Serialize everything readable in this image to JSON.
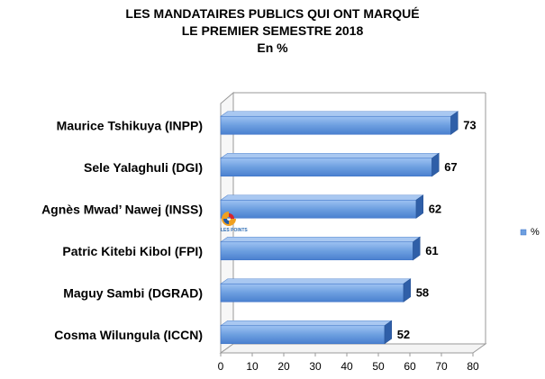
{
  "chart_data": {
    "type": "bar",
    "orientation": "horizontal",
    "three_d": true,
    "title_lines": [
      "LES MANDATAIRES PUBLICS QUI ONT MARQUÉ",
      "LE PREMIER SEMESTRE 2018",
      "En %"
    ],
    "categories": [
      "Maurice Tshikuya   (INPP)",
      "Sele Yalaghuli (DGI)",
      "Agnès Mwad’ Nawej (INSS)",
      "Patric Kitebi Kibol (FPI)",
      "Maguy Sambi (DGRAD)",
      "Cosma Wilungula  (ICCN)"
    ],
    "series": [
      {
        "name": "%",
        "values": [
          73,
          67,
          62,
          61,
          58,
          52
        ]
      }
    ],
    "xlim": [
      0,
      80
    ],
    "xticks": [
      "0",
      "10",
      "20",
      "30",
      "40",
      "50",
      "60",
      "70",
      "80"
    ],
    "grid": false,
    "legend_position": "right",
    "bar_color": "#6d9fe0",
    "bar_color_dark": "#3f74c8",
    "watermark_text": "LES POINTS"
  }
}
